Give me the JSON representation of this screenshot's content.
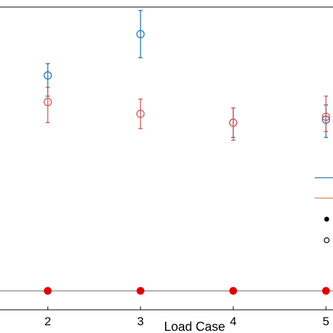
{
  "chart_data": {
    "type": "scatter",
    "title": "",
    "xlabel": "Load Case",
    "ylabel": "",
    "x_ticks": [
      "2",
      "3",
      "4",
      "5"
    ],
    "grid": false,
    "legend_placement": "right",
    "series": [
      {
        "color": "#1f77b4",
        "marker": "open-circle",
        "x": [
          2,
          3,
          4,
          5
        ],
        "y": [
          0.73,
          0.87,
          0.57,
          0.58
        ],
        "err_low": [
          0.07,
          0.08,
          0.05,
          0.06
        ],
        "err_high": [
          0.04,
          0.08,
          0.05,
          0.05
        ]
      },
      {
        "color": "#d9534f",
        "marker": "open-circle",
        "x": [
          2,
          3,
          4,
          5
        ],
        "y": [
          0.64,
          0.6,
          0.57,
          0.59
        ],
        "err_low": [
          0.07,
          0.05,
          0.06,
          0.05
        ],
        "err_high": [
          0.05,
          0.05,
          0.05,
          0.07
        ]
      },
      {
        "color": "#e00000",
        "marker": "filled-circle",
        "x": [
          2,
          3,
          4,
          5
        ],
        "y": [
          0,
          0,
          0,
          0
        ]
      }
    ],
    "legend_entries": [
      {
        "symbol": "line",
        "color": "#1f77b4"
      },
      {
        "symbol": "line",
        "color": "#e08050"
      },
      {
        "symbol": "filled-circle",
        "color": "#000000"
      },
      {
        "symbol": "open-circle",
        "color": "#000000"
      }
    ]
  },
  "colors": {
    "axis": "#000000",
    "zero_line": "#808080",
    "top_line": "#000000"
  }
}
